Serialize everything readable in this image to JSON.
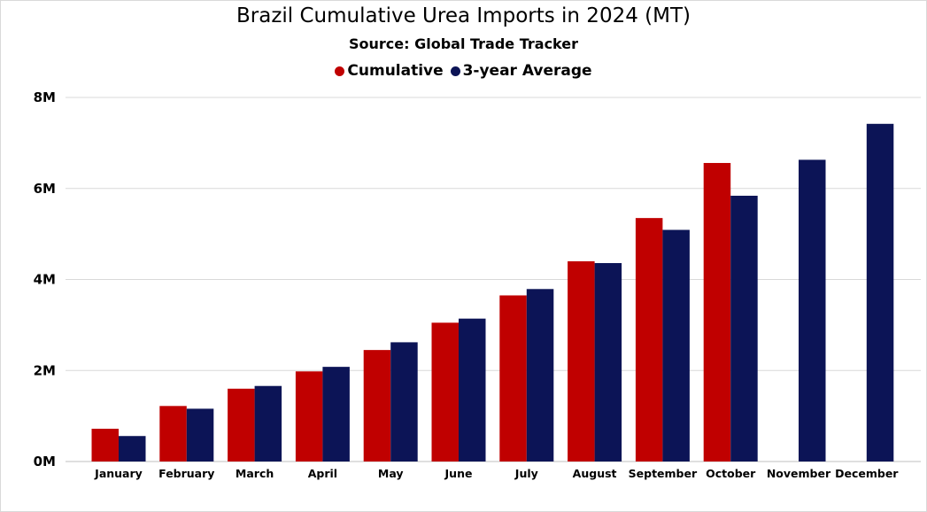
{
  "chart_data": {
    "type": "bar",
    "title": "Brazil Cumulative Urea Imports in 2024 (MT)",
    "subtitle": "Source: Global Trade Tracker",
    "xlabel": "",
    "ylabel": "",
    "categories": [
      "January",
      "February",
      "March",
      "April",
      "May",
      "June",
      "July",
      "August",
      "September",
      "October",
      "November",
      "December"
    ],
    "series": [
      {
        "name": "Cumulative",
        "color": "#c00000",
        "values": [
          720000,
          1220000,
          1600000,
          1980000,
          2450000,
          3050000,
          3650000,
          4400000,
          5350000,
          6560000,
          null,
          null
        ]
      },
      {
        "name": "3-year Average",
        "color": "#0c1456",
        "values": [
          560000,
          1160000,
          1660000,
          2080000,
          2620000,
          3140000,
          3790000,
          4360000,
          5090000,
          5840000,
          6630000,
          7420000
        ]
      }
    ],
    "ylim": [
      0,
      8000000
    ],
    "yticks": [
      {
        "value": 0,
        "label": "0M"
      },
      {
        "value": 2000000,
        "label": "2M"
      },
      {
        "value": 4000000,
        "label": "4M"
      },
      {
        "value": 6000000,
        "label": "6M"
      },
      {
        "value": 8000000,
        "label": "8M"
      }
    ],
    "grid": true,
    "legend_position": "top"
  }
}
